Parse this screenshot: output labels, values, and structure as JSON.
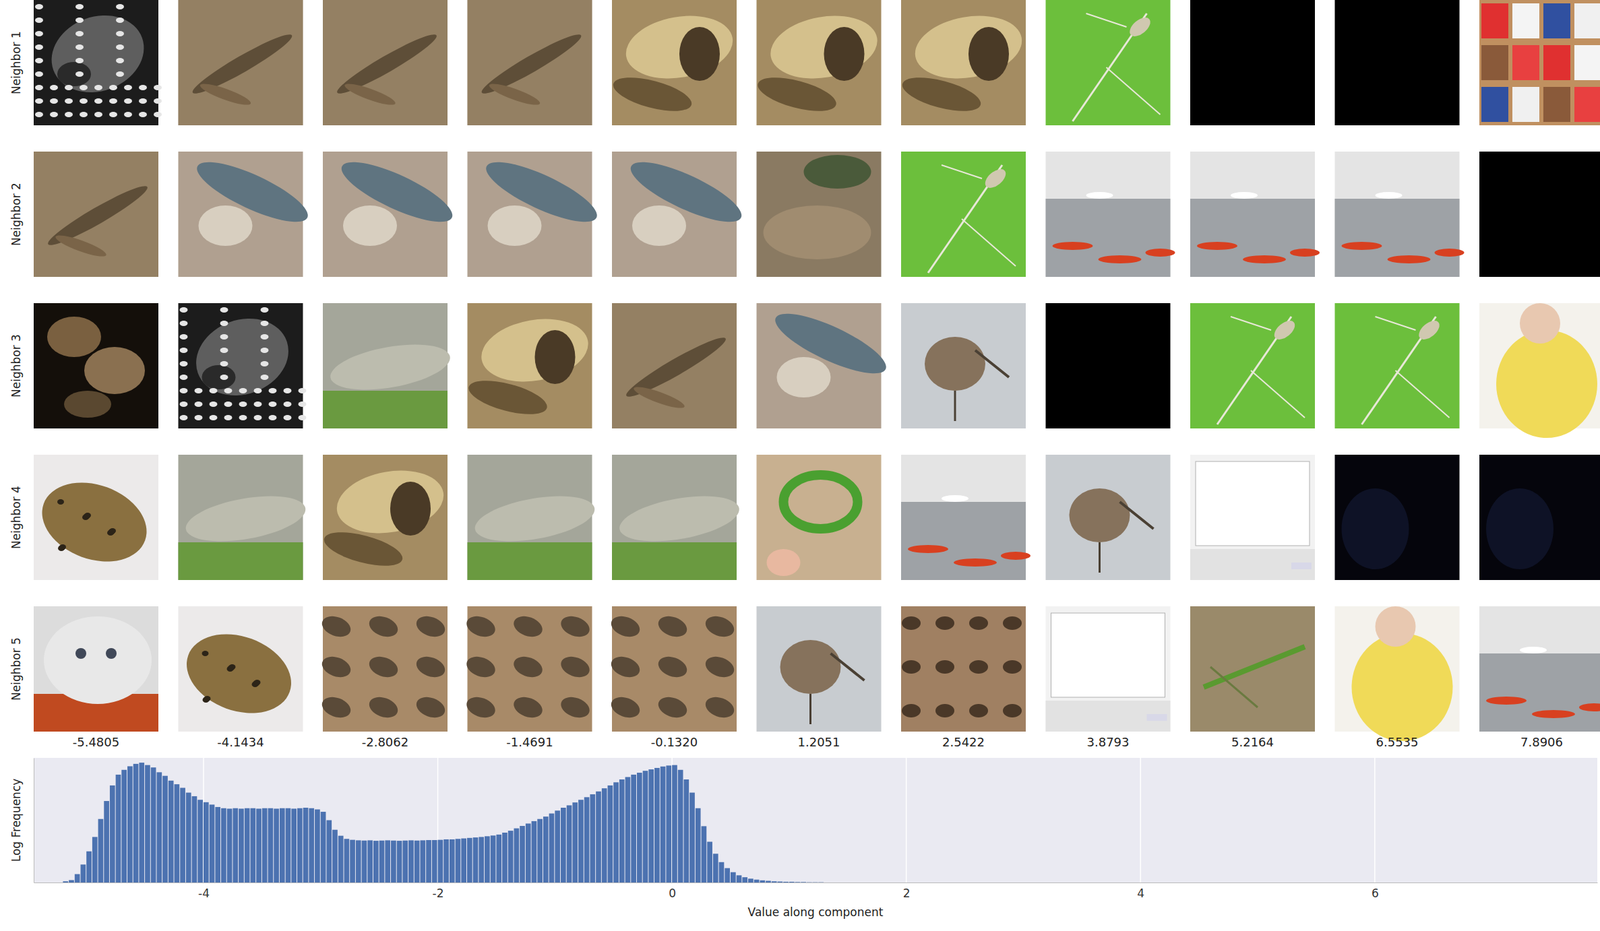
{
  "chart_data": {
    "type": "histogram",
    "xlabel": "Value along component",
    "ylabel": "Log Frequency",
    "bins": [
      -5.2,
      -5.15,
      -5.1,
      -5.05,
      -5,
      -4.95,
      -4.9,
      -4.85,
      -4.8,
      -4.75,
      -4.7,
      -4.65,
      -4.6,
      -4.55,
      -4.5,
      -4.45,
      -4.4,
      -4.35,
      -4.3,
      -4.25,
      -4.2,
      -4.15,
      -4.1,
      -4.05,
      -4,
      -3.95,
      -3.9,
      -3.85,
      -3.8,
      -3.75,
      -3.7,
      -3.65,
      -3.6,
      -3.55,
      -3.5,
      -3.45,
      -3.4,
      -3.35,
      -3.3,
      -3.25,
      -3.2,
      -3.15,
      -3.1,
      -3.05,
      -3,
      -2.95,
      -2.9,
      -2.85,
      -2.8,
      -2.75,
      -2.7,
      -2.65,
      -2.6,
      -2.55,
      -2.5,
      -2.45,
      -2.4,
      -2.35,
      -2.3,
      -2.25,
      -2.2,
      -2.15,
      -2.1,
      -2.05,
      -2,
      -1.95,
      -1.9,
      -1.85,
      -1.8,
      -1.75,
      -1.7,
      -1.65,
      -1.6,
      -1.55,
      -1.5,
      -1.45,
      -1.4,
      -1.35,
      -1.3,
      -1.25,
      -1.2,
      -1.15,
      -1.1,
      -1.05,
      -1,
      -0.95,
      -0.9,
      -0.85,
      -0.8,
      -0.75,
      -0.7,
      -0.65,
      -0.6,
      -0.55,
      -0.5,
      -0.45,
      -0.4,
      -0.35,
      -0.3,
      -0.25,
      -0.2,
      -0.15,
      -0.1,
      -0.05,
      0,
      0.05,
      0.1,
      0.15,
      0.2,
      0.25,
      0.3,
      0.35,
      0.4,
      0.45,
      0.5,
      0.55,
      0.6,
      0.65,
      0.7,
      0.75,
      0.8,
      0.85,
      0.9,
      0.95,
      1,
      1.05,
      1.1,
      1.15,
      1.2,
      1.25,
      1.3
    ],
    "values": [
      0.05,
      0.1,
      0.35,
      0.75,
      1.3,
      1.9,
      2.65,
      3.4,
      4.05,
      4.5,
      4.7,
      4.85,
      4.95,
      5.0,
      4.9,
      4.8,
      4.6,
      4.45,
      4.25,
      4.1,
      3.95,
      3.75,
      3.6,
      3.45,
      3.35,
      3.25,
      3.15,
      3.1,
      3.08,
      3.1,
      3.08,
      3.1,
      3.1,
      3.08,
      3.1,
      3.1,
      3.08,
      3.1,
      3.1,
      3.08,
      3.1,
      3.12,
      3.1,
      3.05,
      2.95,
      2.6,
      2.2,
      1.95,
      1.82,
      1.78,
      1.76,
      1.75,
      1.76,
      1.74,
      1.75,
      1.76,
      1.75,
      1.74,
      1.75,
      1.76,
      1.75,
      1.76,
      1.77,
      1.77,
      1.78,
      1.8,
      1.8,
      1.82,
      1.84,
      1.86,
      1.88,
      1.9,
      1.93,
      1.96,
      2.0,
      2.08,
      2.16,
      2.26,
      2.36,
      2.46,
      2.56,
      2.65,
      2.75,
      2.88,
      3.0,
      3.12,
      3.22,
      3.34,
      3.45,
      3.56,
      3.68,
      3.8,
      3.93,
      4.05,
      4.18,
      4.3,
      4.4,
      4.5,
      4.58,
      4.66,
      4.72,
      4.78,
      4.84,
      4.88,
      4.9,
      4.7,
      4.3,
      3.75,
      3.1,
      2.35,
      1.7,
      1.2,
      0.85,
      0.6,
      0.43,
      0.3,
      0.22,
      0.16,
      0.12,
      0.09,
      0.07,
      0.05,
      0.04,
      0.03,
      0.03,
      0.02,
      0.02,
      0.01,
      0.01,
      0.01
    ],
    "color": "#4c72b0",
    "xlim": [
      -5.45,
      7.9
    ],
    "xticks": [
      -4,
      -2,
      0,
      2,
      4,
      6
    ],
    "ylim": [
      0,
      5.2
    ],
    "grid": true,
    "tick_labels": "x"
  },
  "image_grid": {
    "row_labels": [
      "Neighbor 1",
      "Neighbor 2",
      "Neighbor 3",
      "Neighbor 4",
      "Neighbor 5"
    ],
    "column_labels": [
      "-5.4805",
      "-4.1434",
      "-2.8062",
      "-1.4691",
      "-0.1320",
      "1.2051",
      "2.5422",
      "3.8793",
      "5.2164",
      "6.5535",
      "7.8906"
    ]
  }
}
